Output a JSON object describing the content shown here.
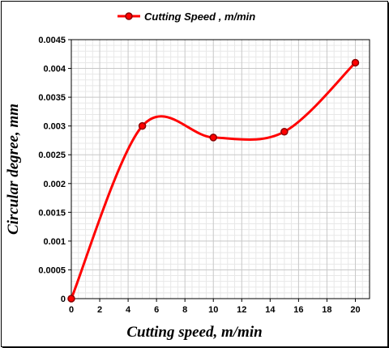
{
  "chart_data": {
    "type": "line",
    "x": [
      0,
      5,
      10,
      15,
      20
    ],
    "series": [
      {
        "name": "Cutting Speed , m/min",
        "values": [
          0,
          0.003,
          0.0028,
          0.0029,
          0.0041
        ]
      }
    ],
    "xlabel": "Cutting speed, m/min",
    "ylabel": "Circular degree, mm",
    "xlim": [
      0,
      21
    ],
    "ylim": [
      0,
      0.0045
    ],
    "xticks": [
      "0",
      "2",
      "4",
      "6",
      "8",
      "10",
      "12",
      "14",
      "16",
      "18",
      "20"
    ],
    "yticks": [
      "0",
      "0.0005",
      "0.001",
      "0.0015",
      "0.002",
      "0.0025",
      "0.003",
      "0.0035",
      "0.004",
      "0.0045"
    ],
    "grid": true,
    "legend": "top-center",
    "color": "#ff0000"
  }
}
